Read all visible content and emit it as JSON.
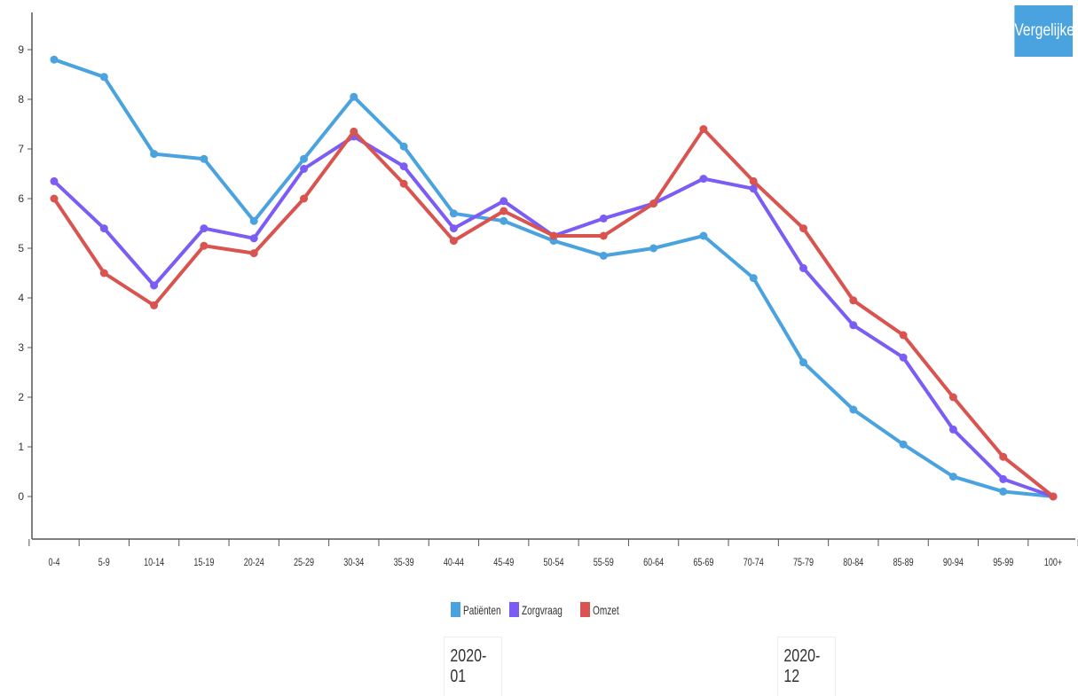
{
  "compare_button": {
    "label": "Vergelijken"
  },
  "period": {
    "start": "2020-01",
    "end": "2020-12"
  },
  "chart_data": {
    "type": "line",
    "categories": [
      "0-4",
      "5-9",
      "10-14",
      "15-19",
      "20-24",
      "25-29",
      "30-34",
      "35-39",
      "40-44",
      "45-49",
      "50-54",
      "55-59",
      "60-64",
      "65-69",
      "70-74",
      "75-79",
      "80-84",
      "85-89",
      "90-94",
      "95-99",
      "100+"
    ],
    "ylim": [
      0,
      10
    ],
    "yticks": [
      0,
      1,
      2,
      3,
      4,
      5,
      6,
      7,
      8,
      9
    ],
    "grid": false,
    "legend_position": "bottom",
    "series": [
      {
        "name": "Patiënten",
        "color": "#4aa3df",
        "values": [
          8.8,
          8.45,
          6.9,
          6.8,
          5.55,
          6.8,
          8.05,
          7.05,
          5.7,
          5.55,
          5.15,
          4.85,
          5.0,
          5.25,
          4.4,
          2.7,
          1.75,
          1.05,
          0.4,
          0.1,
          0.0
        ]
      },
      {
        "name": "Zorgvraag",
        "color": "#7b5cf5",
        "values": [
          6.35,
          5.4,
          4.25,
          5.4,
          5.2,
          6.6,
          7.25,
          6.65,
          5.4,
          5.95,
          5.25,
          5.6,
          5.9,
          6.4,
          6.2,
          4.6,
          3.45,
          2.8,
          1.35,
          0.35,
          0.0
        ]
      },
      {
        "name": "Omzet",
        "color": "#d9534f",
        "values": [
          6.0,
          4.5,
          3.85,
          5.05,
          4.9,
          6.0,
          7.35,
          6.3,
          5.15,
          5.75,
          5.25,
          5.25,
          5.9,
          7.4,
          6.35,
          5.4,
          3.95,
          3.25,
          2.0,
          0.8,
          0.0
        ]
      }
    ]
  }
}
